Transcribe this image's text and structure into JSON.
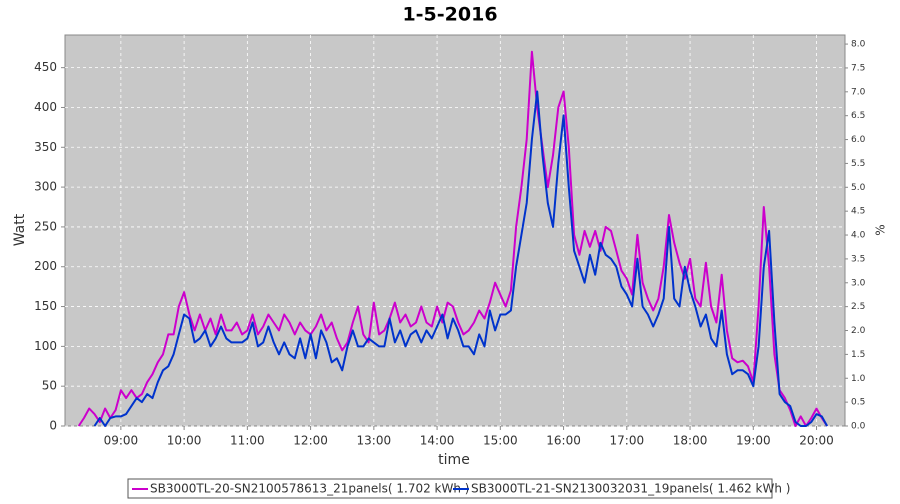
{
  "chart_data": {
    "type": "line",
    "title": "1-5-2016",
    "xlabel": "time",
    "ylabel": "Watt",
    "y2label": "%",
    "x": [
      "08:20",
      "08:25",
      "08:30",
      "08:35",
      "08:40",
      "08:45",
      "08:50",
      "08:55",
      "09:00",
      "09:05",
      "09:10",
      "09:15",
      "09:20",
      "09:25",
      "09:30",
      "09:35",
      "09:40",
      "09:45",
      "09:50",
      "09:55",
      "10:00",
      "10:05",
      "10:10",
      "10:15",
      "10:20",
      "10:25",
      "10:30",
      "10:35",
      "10:40",
      "10:45",
      "10:50",
      "10:55",
      "11:00",
      "11:05",
      "11:10",
      "11:15",
      "11:20",
      "11:25",
      "11:30",
      "11:35",
      "11:40",
      "11:45",
      "11:50",
      "11:55",
      "12:00",
      "12:05",
      "12:10",
      "12:15",
      "12:20",
      "12:25",
      "12:30",
      "12:35",
      "12:40",
      "12:45",
      "12:50",
      "12:55",
      "13:00",
      "13:05",
      "13:10",
      "13:15",
      "13:20",
      "13:25",
      "13:30",
      "13:35",
      "13:40",
      "13:45",
      "13:50",
      "13:55",
      "14:00",
      "14:05",
      "14:10",
      "14:15",
      "14:20",
      "14:25",
      "14:30",
      "14:35",
      "14:40",
      "14:45",
      "14:50",
      "14:55",
      "15:00",
      "15:05",
      "15:10",
      "15:15",
      "15:20",
      "15:25",
      "15:30",
      "15:35",
      "15:40",
      "15:45",
      "15:50",
      "15:55",
      "16:00",
      "16:05",
      "16:10",
      "16:15",
      "16:20",
      "16:25",
      "16:30",
      "16:35",
      "16:40",
      "16:45",
      "16:50",
      "16:55",
      "17:00",
      "17:05",
      "17:10",
      "17:15",
      "17:20",
      "17:25",
      "17:30",
      "17:35",
      "17:40",
      "17:45",
      "17:50",
      "17:55",
      "18:00",
      "18:05",
      "18:10",
      "18:15",
      "18:20",
      "18:25",
      "18:30",
      "18:35",
      "18:40",
      "18:45",
      "18:50",
      "18:55",
      "19:00",
      "19:05",
      "19:10",
      "19:15",
      "19:20",
      "19:25",
      "19:30",
      "19:35",
      "19:40",
      "19:45",
      "19:50",
      "19:55",
      "20:00",
      "20:05",
      "20:10"
    ],
    "series": [
      {
        "name": "SB3000TL-20-SN2100578613_21panels( 1.702 kWh )",
        "color": "#cc00cc",
        "values": [
          0,
          10,
          22,
          15,
          5,
          22,
          10,
          20,
          45,
          35,
          45,
          35,
          40,
          55,
          65,
          80,
          90,
          115,
          115,
          150,
          168,
          140,
          120,
          140,
          120,
          135,
          115,
          140,
          120,
          120,
          130,
          115,
          120,
          140,
          115,
          125,
          140,
          130,
          120,
          140,
          130,
          115,
          130,
          120,
          115,
          125,
          140,
          120,
          130,
          110,
          95,
          105,
          130,
          150,
          115,
          105,
          155,
          115,
          120,
          135,
          155,
          130,
          140,
          125,
          130,
          150,
          130,
          125,
          150,
          130,
          155,
          150,
          130,
          115,
          120,
          130,
          145,
          135,
          155,
          180,
          165,
          150,
          170,
          250,
          300,
          360,
          470,
          400,
          350,
          300,
          340,
          400,
          420,
          350,
          240,
          215,
          245,
          225,
          245,
          220,
          250,
          245,
          220,
          195,
          185,
          165,
          240,
          180,
          160,
          145,
          160,
          200,
          265,
          230,
          205,
          185,
          210,
          160,
          150,
          205,
          150,
          130,
          190,
          120,
          85,
          80,
          82,
          75,
          55,
          150,
          275,
          200,
          90,
          45,
          35,
          20,
          0,
          12,
          0,
          10,
          22,
          10,
          0
        ]
      },
      {
        "name": "SB3000TL-21-SN2130032031_19panels( 1.462 kWh )",
        "color": "#0033cc",
        "values": [
          null,
          null,
          null,
          0,
          10,
          0,
          10,
          12,
          12,
          15,
          25,
          35,
          30,
          40,
          35,
          55,
          70,
          75,
          90,
          115,
          140,
          135,
          105,
          110,
          120,
          100,
          110,
          125,
          110,
          105,
          105,
          105,
          110,
          130,
          100,
          105,
          125,
          105,
          90,
          105,
          90,
          85,
          110,
          85,
          115,
          85,
          120,
          105,
          80,
          85,
          70,
          100,
          120,
          100,
          100,
          110,
          105,
          100,
          100,
          135,
          105,
          120,
          100,
          115,
          120,
          105,
          120,
          110,
          125,
          140,
          110,
          135,
          120,
          100,
          100,
          90,
          115,
          100,
          145,
          120,
          140,
          140,
          145,
          200,
          240,
          280,
          360,
          420,
          340,
          280,
          250,
          330,
          390,
          300,
          220,
          200,
          180,
          215,
          190,
          230,
          215,
          210,
          200,
          175,
          165,
          150,
          210,
          150,
          140,
          125,
          140,
          160,
          250,
          160,
          150,
          200,
          170,
          150,
          125,
          140,
          110,
          100,
          145,
          90,
          65,
          70,
          70,
          65,
          50,
          100,
          200,
          245,
          130,
          40,
          30,
          25,
          5,
          0,
          0,
          5,
          15,
          12,
          0
        ]
      }
    ],
    "xlim": [
      "08:07",
      "20:27"
    ],
    "xticks": [
      "09:00",
      "10:00",
      "11:00",
      "12:00",
      "13:00",
      "14:00",
      "15:00",
      "16:00",
      "17:00",
      "18:00",
      "19:00",
      "20:00"
    ],
    "ylim": [
      0,
      491
    ],
    "yticks": [
      0,
      50,
      100,
      150,
      200,
      250,
      300,
      350,
      400,
      450
    ],
    "y2lim": [
      0,
      8.19
    ],
    "y2ticks": [
      {
        "value": 0,
        "label": "0.0"
      },
      {
        "value": 0.5,
        "label": "0.5"
      },
      {
        "value": 1,
        "label": "1.0"
      },
      {
        "value": 1.5,
        "label": "1.5"
      },
      {
        "value": 2,
        "label": "2.0"
      },
      {
        "value": 2.5,
        "label": "2.5"
      },
      {
        "value": 3,
        "label": "3.0"
      },
      {
        "value": 3.5,
        "label": "3.5"
      },
      {
        "value": 4,
        "label": "4.0"
      },
      {
        "value": 4.5,
        "label": "4.5"
      },
      {
        "value": 5,
        "label": "5.0"
      },
      {
        "value": 5.5,
        "label": "5.5"
      },
      {
        "value": 6,
        "label": "6.0"
      },
      {
        "value": 6.5,
        "label": "6.5"
      },
      {
        "value": 7,
        "label": "7.0"
      },
      {
        "value": 7.5,
        "label": "7.5"
      },
      {
        "value": 8,
        "label": "8.0"
      }
    ],
    "grid": true,
    "legend": "bottom"
  }
}
